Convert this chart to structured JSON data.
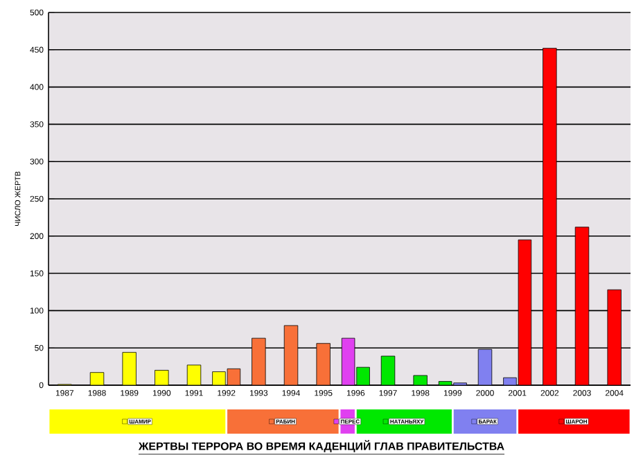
{
  "chart_data": {
    "type": "bar",
    "title": "ЖЕРТВЫ ТЕРРОРА ВО ВРЕМЯ КАДЕНЦИЙ ГЛАВ ПРАВИТЕЛЬСТВА",
    "ylabel": "ЧИСЛО ЖЕРТВ",
    "categories": [
      "1987",
      "1988",
      "1989",
      "1990",
      "1991",
      "1992",
      "1993",
      "1994",
      "1995",
      "1996",
      "1997",
      "1998",
      "1999",
      "2000",
      "2001",
      "2002",
      "2003",
      "2004"
    ],
    "series": [
      {
        "name": "ШАМИР",
        "color": "#ffff00",
        "values": [
          1,
          17,
          44,
          20,
          27,
          18,
          null,
          null,
          null,
          null,
          null,
          null,
          null,
          null,
          null,
          null,
          null,
          null
        ]
      },
      {
        "name": "РАБИН",
        "color": "#f87038",
        "values": [
          null,
          null,
          null,
          null,
          null,
          22,
          63,
          80,
          56,
          null,
          null,
          null,
          null,
          null,
          null,
          null,
          null,
          null
        ]
      },
      {
        "name": "ПЕРЕС",
        "color": "#e040f0",
        "values": [
          null,
          null,
          null,
          null,
          null,
          null,
          null,
          null,
          null,
          63,
          null,
          null,
          null,
          null,
          null,
          null,
          null,
          null
        ]
      },
      {
        "name": "НАТАНЬЯХУ",
        "color": "#00e800",
        "values": [
          null,
          null,
          null,
          null,
          null,
          null,
          null,
          null,
          null,
          24,
          39,
          13,
          5,
          null,
          null,
          null,
          null,
          null
        ]
      },
      {
        "name": "БАРАК",
        "color": "#8080f0",
        "values": [
          null,
          null,
          null,
          null,
          null,
          null,
          null,
          null,
          null,
          null,
          null,
          null,
          3,
          48,
          10,
          null,
          null,
          null
        ]
      },
      {
        "name": "ШАРОН",
        "color": "#ff0000",
        "values": [
          null,
          null,
          null,
          null,
          null,
          null,
          null,
          null,
          null,
          null,
          null,
          null,
          null,
          null,
          195,
          452,
          212,
          128
        ]
      }
    ],
    "ylim": [
      0,
      500
    ],
    "yticks": [
      0,
      50,
      100,
      150,
      200,
      250,
      300,
      350,
      400,
      450,
      500
    ],
    "grid": "y",
    "legend": "bottom"
  }
}
